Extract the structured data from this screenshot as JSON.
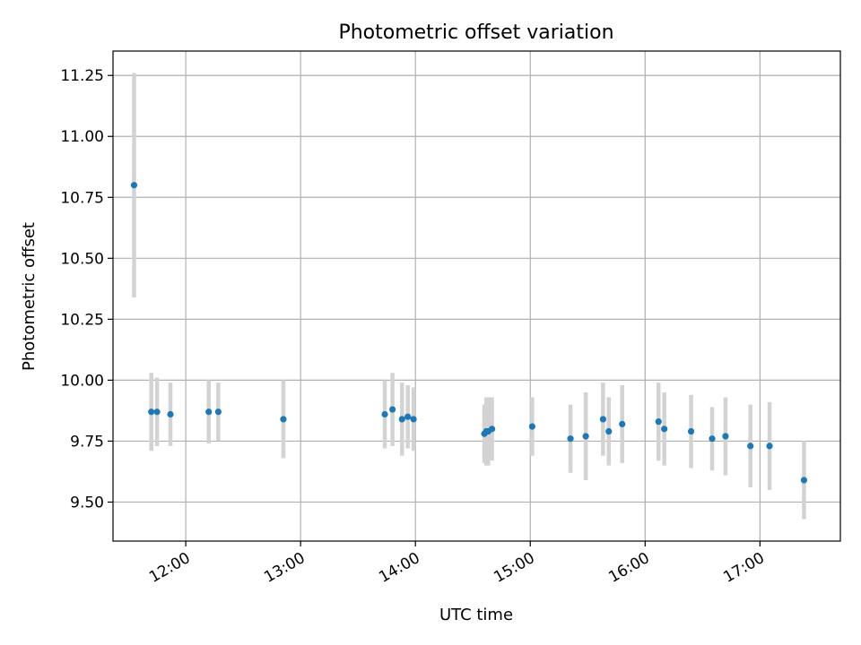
{
  "chart_data": {
    "type": "scatter",
    "title": "Photometric offset variation",
    "xlabel": "UTC time",
    "ylabel": "Photometric offset",
    "grid": true,
    "legend": "none",
    "xlim": [
      "11:22",
      "17:42"
    ],
    "ylim": [
      9.34,
      11.35
    ],
    "x_ticks": [
      "12:00",
      "13:00",
      "14:00",
      "15:00",
      "16:00",
      "17:00"
    ],
    "y_ticks": [
      9.5,
      9.75,
      10.0,
      10.25,
      10.5,
      10.75,
      11.0,
      11.25
    ],
    "y_tick_labels": [
      "9.50",
      "9.75",
      "10.00",
      "10.25",
      "10.50",
      "10.75",
      "11.00",
      "11.25"
    ],
    "colors": {
      "marker": "#1f77b4",
      "errorbar": "#d3d3d3",
      "grid": "#b0b0b0"
    },
    "series": [
      {
        "x": [
          "11:33",
          "11:42",
          "11:45",
          "11:52",
          "12:12",
          "12:17",
          "12:51",
          "13:44",
          "13:48",
          "13:53",
          "13:56",
          "13:59",
          "14:36",
          "14:37",
          "14:38",
          "14:40",
          "15:01",
          "15:21",
          "15:29",
          "15:38",
          "15:41",
          "15:48",
          "16:07",
          "16:10",
          "16:24",
          "16:35",
          "16:42",
          "16:55",
          "17:05",
          "17:23"
        ],
        "y": [
          10.8,
          9.87,
          9.87,
          9.86,
          9.87,
          9.87,
          9.84,
          9.86,
          9.88,
          9.84,
          9.85,
          9.84,
          9.78,
          9.79,
          9.79,
          9.8,
          9.81,
          9.76,
          9.77,
          9.84,
          9.79,
          9.82,
          9.83,
          9.8,
          9.79,
          9.76,
          9.77,
          9.73,
          9.73,
          9.59
        ],
        "yerr": [
          0.46,
          0.16,
          0.14,
          0.13,
          0.13,
          0.12,
          0.16,
          0.14,
          0.15,
          0.15,
          0.13,
          0.13,
          0.12,
          0.14,
          0.14,
          0.13,
          0.12,
          0.14,
          0.18,
          0.15,
          0.14,
          0.16,
          0.16,
          0.15,
          0.15,
          0.13,
          0.16,
          0.17,
          0.18,
          0.16
        ]
      }
    ]
  }
}
